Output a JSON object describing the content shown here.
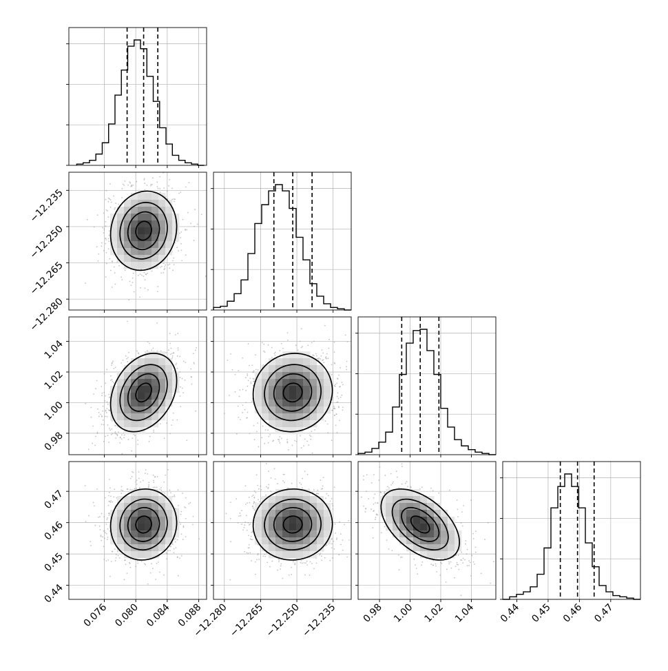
{
  "chart_data": {
    "type": "corner",
    "grid": true,
    "parameters": [
      {
        "range": [
          0.0715,
          0.089
        ],
        "ticks": [
          "0.076",
          "0.080",
          "0.084",
          "0.088"
        ],
        "tick_values": [
          0.076,
          0.08,
          0.084,
          0.088
        ],
        "quantiles": [
          0.0789,
          0.081,
          0.0828
        ],
        "hist_bin_start": 0.0725,
        "hist_bin_width": 0.00081,
        "hist_counts": [
          1,
          2,
          4,
          9,
          18,
          33,
          56,
          76,
          95,
          100,
          93,
          71,
          51,
          30,
          17,
          8,
          4,
          2,
          1,
          0
        ]
      },
      {
        "range": [
          -12.2845,
          -12.2275
        ],
        "ticks": [
          "−12.280",
          "−12.265",
          "−12.250",
          "−12.235"
        ],
        "tick_values": [
          -12.28,
          -12.265,
          -12.25,
          -12.235
        ],
        "quantiles": [
          -12.2595,
          -12.2517,
          -12.2437
        ],
        "hist_bin_start": -12.2845,
        "hist_bin_width": 0.00285,
        "hist_counts": [
          2,
          3,
          7,
          13,
          24,
          45,
          69,
          84,
          95,
          100,
          95,
          81,
          58,
          40,
          21,
          11,
          5,
          2,
          1,
          0
        ]
      },
      {
        "range": [
          0.966,
          1.056
        ],
        "ticks": [
          "0.98",
          "1.00",
          "1.02",
          "1.04"
        ],
        "tick_values": [
          0.98,
          1.0,
          1.02,
          1.04
        ],
        "quantiles": [
          0.9945,
          1.0066,
          1.0188
        ],
        "hist_bin_start": 0.966,
        "hist_bin_width": 0.0045,
        "hist_counts": [
          1,
          2,
          5,
          10,
          18,
          38,
          64,
          89,
          99,
          100,
          83,
          64,
          37,
          22,
          12,
          7,
          4,
          2,
          1,
          0
        ]
      },
      {
        "range": [
          0.4355,
          0.4795
        ],
        "ticks": [
          "0.44",
          "0.45",
          "0.46",
          "0.47"
        ],
        "tick_values": [
          0.44,
          0.45,
          0.46,
          0.47
        ],
        "quantiles": [
          0.4539,
          0.4594,
          0.4647
        ],
        "hist_bin_start": 0.4355,
        "hist_bin_width": 0.0022,
        "hist_counts": [
          0,
          2,
          4,
          6,
          10,
          20,
          41,
          73,
          90,
          100,
          90,
          73,
          45,
          26,
          11,
          6,
          3,
          2,
          1,
          0
        ]
      }
    ],
    "pairs": [
      {
        "x": 0,
        "y": 1,
        "center": [
          0.081,
          -12.2517
        ],
        "sigma": [
          0.002,
          0.0078
        ],
        "rho": 0.1
      },
      {
        "x": 0,
        "y": 2,
        "center": [
          0.081,
          1.0066
        ],
        "sigma": [
          0.002,
          0.0122
        ],
        "rho": 0.3
      },
      {
        "x": 1,
        "y": 2,
        "center": [
          -12.2517,
          1.0066
        ],
        "sigma": [
          0.0078,
          0.0122
        ],
        "rho": 0.05
      },
      {
        "x": 0,
        "y": 3,
        "center": [
          0.081,
          0.4594
        ],
        "sigma": [
          0.002,
          0.0054
        ],
        "rho": 0.05
      },
      {
        "x": 1,
        "y": 3,
        "center": [
          -12.2517,
          0.4594
        ],
        "sigma": [
          0.0078,
          0.0054
        ],
        "rho": 0.02
      },
      {
        "x": 2,
        "y": 3,
        "center": [
          1.0066,
          0.4594
        ],
        "sigma": [
          0.0122,
          0.0054
        ],
        "rho": -0.5
      }
    ],
    "contour_levels_sigma": [
      0.5,
      1.0,
      1.5,
      2.0
    ],
    "colors": {
      "line": "#000000",
      "grid": "#b0b0b0",
      "points": "#9a9a9a"
    }
  }
}
